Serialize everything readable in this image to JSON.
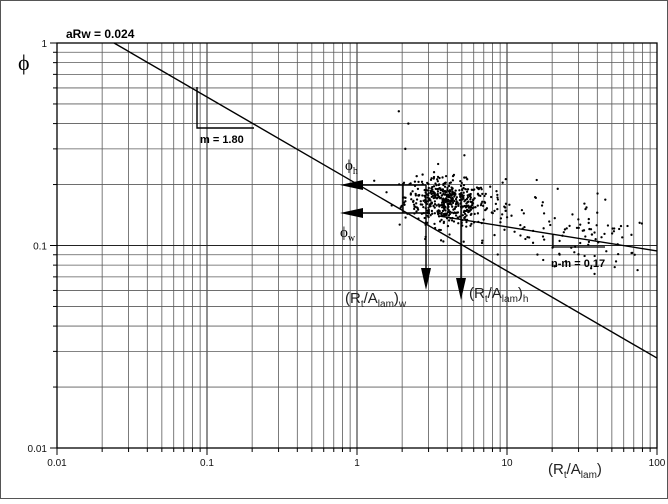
{
  "chart_data": {
    "type": "scatter",
    "x_scale": "log",
    "y_scale": "log",
    "xlim": [
      0.01,
      100
    ],
    "ylim": [
      0.01,
      1
    ],
    "grid": true,
    "x_tick_labels": [
      "0.01",
      "0.1",
      "1",
      "10",
      "100"
    ],
    "y_tick_labels": [
      "1",
      "0.1",
      "0.01"
    ],
    "xlabel": {
      "base": "(R",
      "sub1": "t",
      "mid": "/A",
      "sub2": "lam",
      "end": ")"
    },
    "ylabel": "ϕ",
    "annotations": {
      "arw": "aRw = 0.024",
      "slope_m": "m = 1.80",
      "slope_nm": "n-m = 0.17",
      "phi_h": {
        "base": "ϕ",
        "sub": "h"
      },
      "phi_w": {
        "base": "ϕ",
        "sub": "w"
      },
      "ratio_w": {
        "base": "(R",
        "sub1": "t",
        "mid": "/A",
        "sub2": "lam",
        "end": ")",
        "sub3": "w"
      },
      "ratio_h": {
        "base": "(R",
        "sub1": "t",
        "mid": "/A",
        "sub2": "lam",
        "end": ")",
        "sub3": "h"
      }
    },
    "lines": [
      {
        "name": "",
        "x": [
          0.024,
          100
        ],
        "y": [
          1.0,
          0.0278
        ]
      },
      {
        "name": "",
        "x": [
          3.5,
          100
        ],
        "y": [
          0.14,
          0.094
        ]
      }
    ],
    "scatter_cluster": {
      "x_center": 4.0,
      "y_center": 0.165,
      "count": 620
    }
  }
}
